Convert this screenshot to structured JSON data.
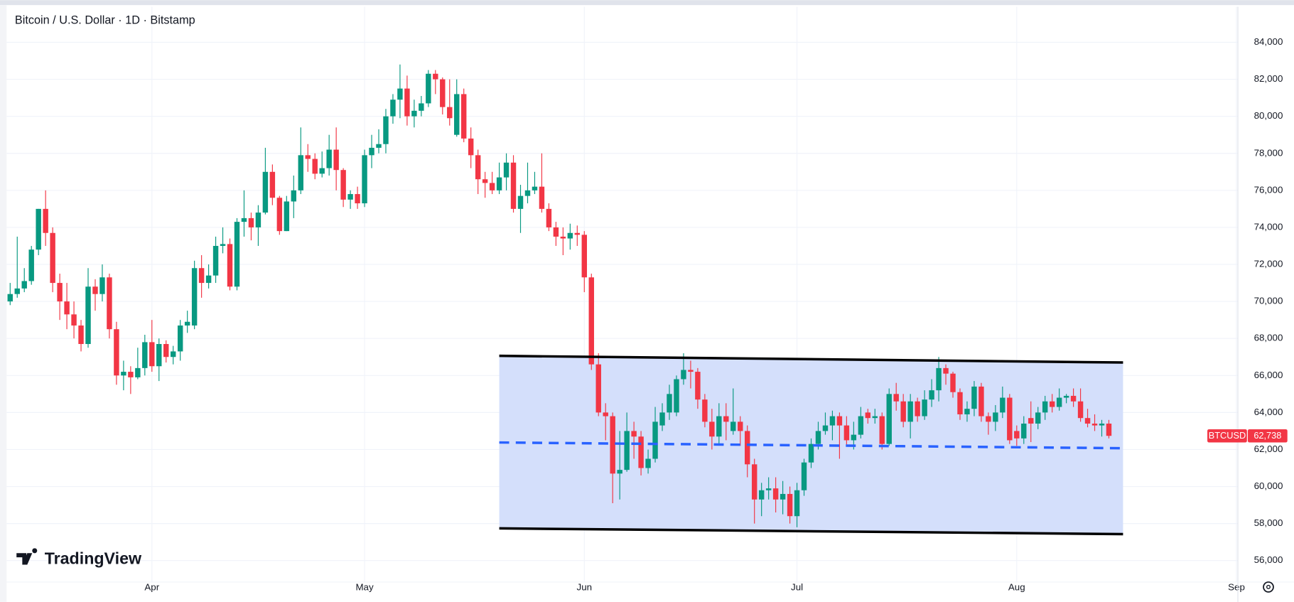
{
  "chart_data": {
    "type": "candlestick",
    "title": "Bitcoin / U.S. Dollar · 1D · Bitstamp",
    "watermark": "TradingView",
    "xlim": [
      -20.5,
      153.2
    ],
    "xticks": [
      {
        "value": 0,
        "label": "Apr"
      },
      {
        "value": 30,
        "label": "May"
      },
      {
        "value": 61,
        "label": "Jun"
      },
      {
        "value": 91,
        "label": "Jul"
      },
      {
        "value": 122,
        "label": "Aug"
      },
      {
        "value": 153,
        "label": "Sep"
      }
    ],
    "ylim": [
      54840,
      85920
    ],
    "yticks": [
      {
        "value": 56000,
        "label": "56,000"
      },
      {
        "value": 58000,
        "label": "58,000"
      },
      {
        "value": 60000,
        "label": "60,000"
      },
      {
        "value": 62000,
        "label": "62,000"
      },
      {
        "value": 64000,
        "label": "64,000"
      },
      {
        "value": 66000,
        "label": "66,000"
      },
      {
        "value": 68000,
        "label": "68,000"
      },
      {
        "value": 70000,
        "label": "70,000"
      },
      {
        "value": 72000,
        "label": "72,000"
      },
      {
        "value": 74000,
        "label": "74,000"
      },
      {
        "value": 76000,
        "label": "76,000"
      },
      {
        "value": 78000,
        "label": "78,000"
      },
      {
        "value": 80000,
        "label": "80,000"
      },
      {
        "value": 82000,
        "label": "82,000"
      },
      {
        "value": 84000,
        "label": "84,000"
      }
    ],
    "grid": true,
    "channel": {
      "x": [
        49,
        137
      ],
      "upper": [
        67060,
        66700
      ],
      "middle": [
        62380,
        62070
      ],
      "lower": [
        57740,
        57430
      ],
      "fill": "#d2ddfb",
      "edge_color": "#000000",
      "middle_color": "#2962ff"
    },
    "series": [
      {
        "name": "BTCUSD",
        "up_color": "#089981",
        "down_color": "#f23645",
        "last_label": "62,738",
        "x": [
          -20,
          -19,
          -18,
          -17,
          -16,
          -15,
          -14,
          -13,
          -12,
          -11,
          -10,
          -9,
          -8,
          -7,
          -6,
          -5,
          -4,
          -3,
          -2,
          -1,
          0,
          1,
          2,
          3,
          4,
          5,
          6,
          7,
          8,
          9,
          10,
          11,
          12,
          13,
          14,
          15,
          16,
          17,
          18,
          19,
          20,
          21,
          22,
          23,
          24,
          25,
          26,
          27,
          28,
          29,
          30,
          31,
          32,
          33,
          34,
          35,
          36,
          37,
          38,
          39,
          40,
          41,
          42,
          43,
          44,
          45,
          46,
          47,
          48,
          49,
          50,
          51,
          52,
          53,
          54,
          55,
          56,
          57,
          58,
          59,
          60,
          61,
          62,
          63,
          64,
          65,
          66,
          67,
          68,
          69,
          70,
          71,
          72,
          73,
          74,
          75,
          76,
          77,
          78,
          79,
          80,
          81,
          82,
          83,
          84,
          85,
          86,
          87,
          88,
          89,
          90,
          91,
          92,
          93,
          94,
          95,
          96,
          97,
          98,
          99,
          100,
          101,
          102,
          103,
          104,
          105,
          106,
          107,
          108,
          109,
          110,
          111,
          112,
          113,
          114,
          115,
          116,
          117,
          118,
          119,
          120,
          121,
          122,
          123,
          124,
          125,
          126,
          127,
          128,
          129,
          130,
          131,
          132,
          133,
          134,
          135
        ],
        "open": [
          70000,
          70400,
          70700,
          71100,
          72800,
          75000,
          73700,
          71000,
          70000,
          69300,
          68700,
          67700,
          70800,
          70400,
          71300,
          68500,
          66000,
          66200,
          65900,
          66400,
          67800,
          66500,
          67700,
          67000,
          67300,
          68700,
          68700,
          71800,
          71000,
          71400,
          73000,
          73100,
          70800,
          74300,
          74500,
          74000,
          74800,
          77000,
          75600,
          73800,
          75400,
          76000,
          77900,
          77700,
          76900,
          77200,
          78200,
          77100,
          75500,
          75800,
          75300,
          77900,
          78300,
          78500,
          80000,
          80900,
          81500,
          80000,
          80300,
          80700,
          82300,
          82000,
          80500,
          79000,
          81200,
          78800,
          77900,
          76600,
          76400,
          76000,
          76700,
          77500,
          75000,
          75700,
          76000,
          76200,
          75000,
          74000,
          73500,
          73400,
          73700,
          73600,
          71300,
          66600,
          64000,
          63800,
          60700,
          60900,
          63000,
          62700,
          61000,
          61500,
          63300,
          64000,
          64000,
          65800,
          66300,
          66200,
          64700,
          63500,
          62700,
          63800,
          63000,
          63500,
          63000,
          61200,
          59300,
          59800,
          59900,
          59300,
          59600,
          58400,
          59800,
          61300,
          62300,
          63000,
          63300,
          63800,
          63300,
          62500,
          62800,
          64000,
          63700,
          63800,
          62300,
          65000,
          64600,
          63500,
          64600,
          63800,
          64700,
          65200,
          66400,
          66100,
          65100,
          63900,
          64200,
          65400,
          63800,
          63500,
          64000,
          64800,
          63000,
          62600,
          63700,
          63400,
          64000,
          64600,
          64300,
          64800,
          64900,
          64600,
          63700,
          63400,
          63300,
          63400
        ],
        "high": [
          71000,
          73500,
          71800,
          73000,
          75000,
          76000,
          74000,
          71500,
          71000,
          70000,
          69000,
          71800,
          71200,
          72000,
          71500,
          68900,
          66800,
          66500,
          67500,
          68200,
          69000,
          68000,
          67900,
          67600,
          69000,
          69500,
          72200,
          72500,
          72000,
          73500,
          74000,
          73400,
          74500,
          76000,
          74800,
          75200,
          78300,
          77400,
          75700,
          75700,
          76800,
          79400,
          78500,
          78000,
          78100,
          79000,
          79400,
          77200,
          76000,
          76200,
          78200,
          79000,
          79300,
          80400,
          81200,
          82800,
          82200,
          80900,
          81100,
          82500,
          82500,
          82100,
          82000,
          82000,
          81500,
          79400,
          78200,
          77000,
          77000,
          77500,
          78000,
          77900,
          76300,
          77500,
          77000,
          78000,
          75300,
          74300,
          74000,
          74200,
          74100,
          73800,
          71500,
          67200,
          64500,
          64000,
          63000,
          64000,
          63500,
          63000,
          62000,
          64300,
          64500,
          65500,
          66000,
          67200,
          66800,
          66400,
          65000,
          64200,
          64500,
          64500,
          65300,
          63800,
          63300,
          61500,
          60200,
          60500,
          60500,
          60300,
          60000,
          60200,
          61500,
          62600,
          63500,
          64000,
          64100,
          64000,
          63800,
          63500,
          64300,
          64200,
          64200,
          64000,
          65300,
          65600,
          65000,
          65000,
          64800,
          65200,
          65800,
          67000,
          66600,
          66200,
          65300,
          64600,
          65700,
          65600,
          64000,
          64400,
          65400,
          65000,
          63300,
          63800,
          64600,
          64300,
          64900,
          65000,
          65300,
          65000,
          65300,
          65300,
          64200,
          63900,
          63600,
          63600
        ],
        "low": [
          69800,
          70200,
          70500,
          70900,
          72500,
          73000,
          70500,
          69000,
          68500,
          68000,
          67300,
          67500,
          69500,
          70000,
          68000,
          65500,
          65200,
          65000,
          65800,
          66000,
          66200,
          65700,
          66700,
          66600,
          66800,
          68300,
          68500,
          70200,
          70700,
          71000,
          72600,
          70600,
          70600,
          73500,
          73300,
          73000,
          74700,
          75200,
          73600,
          73800,
          74500,
          75800,
          77000,
          76600,
          76700,
          76800,
          76000,
          75100,
          75000,
          75000,
          75100,
          77200,
          78000,
          78000,
          79600,
          79900,
          79500,
          79400,
          80000,
          80500,
          81200,
          80100,
          79500,
          78900,
          78600,
          77200,
          75800,
          75600,
          75800,
          75800,
          76000,
          74800,
          73700,
          75300,
          75800,
          74800,
          73800,
          73000,
          72500,
          72800,
          73000,
          70500,
          66300,
          63800,
          62500,
          59100,
          59300,
          60800,
          61500,
          60600,
          60700,
          61300,
          63000,
          63600,
          63800,
          65500,
          65300,
          64200,
          63200,
          62000,
          62300,
          62500,
          62800,
          62200,
          60500,
          58000,
          58400,
          59300,
          58600,
          58500,
          58000,
          57800,
          59500,
          61000,
          62000,
          62800,
          62500,
          61500,
          62200,
          62000,
          62600,
          63400,
          63400,
          62000,
          62200,
          64100,
          63200,
          62600,
          63500,
          63600,
          64300,
          64600,
          65500,
          64800,
          63600,
          63500,
          63800,
          63500,
          62800,
          63000,
          63700,
          62300,
          62200,
          62300,
          62400,
          63100,
          63600,
          64000,
          64100,
          64500,
          64300,
          63500,
          63200,
          63000,
          62700,
          62600
        ],
        "close": [
          70400,
          70700,
          71100,
          72800,
          75000,
          73700,
          71000,
          70000,
          69300,
          68700,
          67700,
          70800,
          70400,
          71300,
          68500,
          66000,
          66200,
          65900,
          66400,
          67800,
          66500,
          67700,
          67000,
          67300,
          68700,
          68900,
          71800,
          71000,
          71400,
          73000,
          73100,
          70800,
          74300,
          74500,
          74000,
          74800,
          77000,
          75600,
          73800,
          75400,
          76000,
          77900,
          77700,
          76900,
          77200,
          78200,
          77100,
          75500,
          75800,
          75300,
          77900,
          78300,
          78500,
          80000,
          80900,
          81500,
          80000,
          80300,
          80700,
          82300,
          82000,
          80500,
          79900,
          81200,
          78800,
          77900,
          76600,
          76400,
          76000,
          76700,
          77500,
          75000,
          75700,
          76000,
          76200,
          75000,
          74000,
          73500,
          73400,
          73700,
          73600,
          71300,
          66600,
          64000,
          63800,
          60700,
          60900,
          63000,
          62700,
          61000,
          61500,
          63500,
          64000,
          65000,
          65800,
          66300,
          66200,
          64700,
          63500,
          62700,
          63800,
          63500,
          63500,
          63000,
          61200,
          59300,
          59800,
          59900,
          59300,
          59600,
          58400,
          59800,
          61300,
          62300,
          63000,
          63300,
          63800,
          63300,
          62500,
          62800,
          63800,
          63700,
          63800,
          62300,
          65000,
          64600,
          63500,
          64600,
          63800,
          64700,
          65200,
          66400,
          66100,
          65100,
          63900,
          64200,
          65400,
          63800,
          63500,
          64000,
          64800,
          62500,
          62600,
          63400,
          63400,
          64000,
          64600,
          64300,
          64800,
          64900,
          64600,
          63700,
          63400,
          63300,
          63400,
          62738
        ]
      }
    ]
  }
}
